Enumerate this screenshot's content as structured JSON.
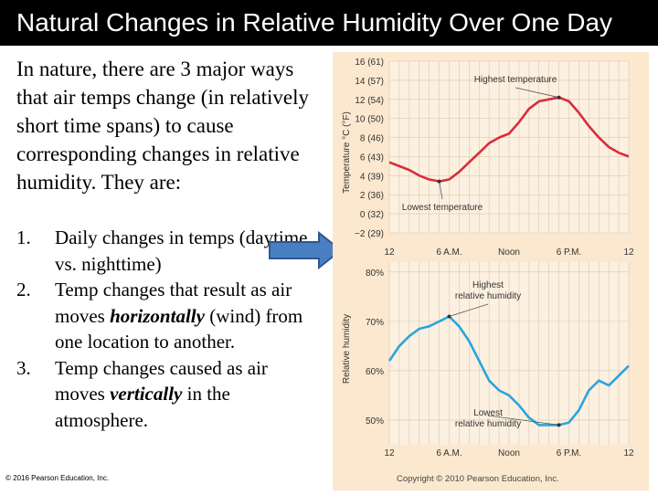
{
  "slide": {
    "title": "Natural Changes in Relative Humidity Over One Day",
    "intro": "In nature, there are 3 major ways that air temps change (in relatively short time spans) to cause corresponding changes in relative humidity. They are:",
    "items": [
      {
        "num": "1.",
        "parts": [
          {
            "text": "Daily changes in temps (daytime vs. nighttime)"
          }
        ]
      },
      {
        "num": "2.",
        "parts": [
          {
            "text": "Temp changes that result as  air moves "
          },
          {
            "text": "horizontally",
            "em": true
          },
          {
            "text": " (wind) from one location to another."
          }
        ]
      },
      {
        "num": "3.",
        "parts": [
          {
            "text": "Temp changes caused as air  moves "
          },
          {
            "text": "vertically",
            "em": true
          },
          {
            "text": " in the atmosphere."
          }
        ]
      }
    ],
    "footer_left": "© 2016 Pearson Education, Inc.",
    "footer_right": "Copyright © 2010 Pearson Education, Inc."
  },
  "colors": {
    "panel_bg": "#fbe8cf",
    "grid": "#d9c9b4",
    "temp_line": "#d62e3c",
    "rh_line": "#2aa5db",
    "arrow": "#4a7ec2"
  },
  "chart_data": [
    {
      "type": "line",
      "ylabel": "Temperature °C (°F)",
      "ylim": [
        -2,
        16
      ],
      "y_ticks": [
        "16 (61)",
        "14 (57)",
        "12 (54)",
        "10 (50)",
        "8 (46)",
        "6 (43)",
        "4 (39)",
        "2 (36)",
        "0 (32)",
        "−2 (29)"
      ],
      "x_ticks": [
        "12",
        "6 A.M.",
        "Noon",
        "6 P.M.",
        "12"
      ],
      "xlim": [
        0,
        24
      ],
      "series": [
        {
          "name": "Temperature",
          "x": [
            0,
            1,
            2,
            3,
            4,
            5,
            6,
            7,
            8,
            9,
            10,
            11,
            12,
            13,
            14,
            15,
            16,
            17,
            18,
            19,
            20,
            21,
            22,
            23,
            24
          ],
          "values": [
            5.4,
            5.0,
            4.6,
            4.0,
            3.6,
            3.4,
            3.6,
            4.4,
            5.4,
            6.4,
            7.4,
            8.0,
            8.4,
            9.6,
            11.0,
            11.8,
            12.0,
            12.2,
            11.8,
            10.6,
            9.2,
            8.0,
            7.0,
            6.4,
            6.0
          ]
        }
      ],
      "annotations": [
        {
          "text": "Highest temperature",
          "x": 17,
          "y": 12.2
        },
        {
          "text": "Lowest temperature",
          "x": 5,
          "y": 3.4
        }
      ]
    },
    {
      "type": "line",
      "ylabel": "Relative humidity",
      "ylim": [
        45,
        82
      ],
      "y_ticks": [
        "80%",
        "70%",
        "60%",
        "50%"
      ],
      "x_ticks": [
        "12",
        "6 A.M.",
        "Noon",
        "6 P.M.",
        "12"
      ],
      "xlim": [
        0,
        24
      ],
      "series": [
        {
          "name": "Relative humidity",
          "x": [
            0,
            1,
            2,
            3,
            4,
            5,
            6,
            7,
            8,
            9,
            10,
            11,
            12,
            13,
            14,
            15,
            16,
            17,
            18,
            19,
            20,
            21,
            22,
            23,
            24
          ],
          "values": [
            62,
            65,
            67,
            68.5,
            69,
            70,
            71,
            69,
            66,
            62,
            58,
            56,
            55,
            53,
            50.5,
            49,
            49,
            49,
            49.5,
            52,
            56,
            58,
            57,
            59,
            61
          ]
        }
      ],
      "annotations": [
        {
          "text": "Highest relative humidity",
          "x": 6,
          "y": 71
        },
        {
          "text": "Lowest relative humidity",
          "x": 17,
          "y": 49
        }
      ]
    }
  ]
}
